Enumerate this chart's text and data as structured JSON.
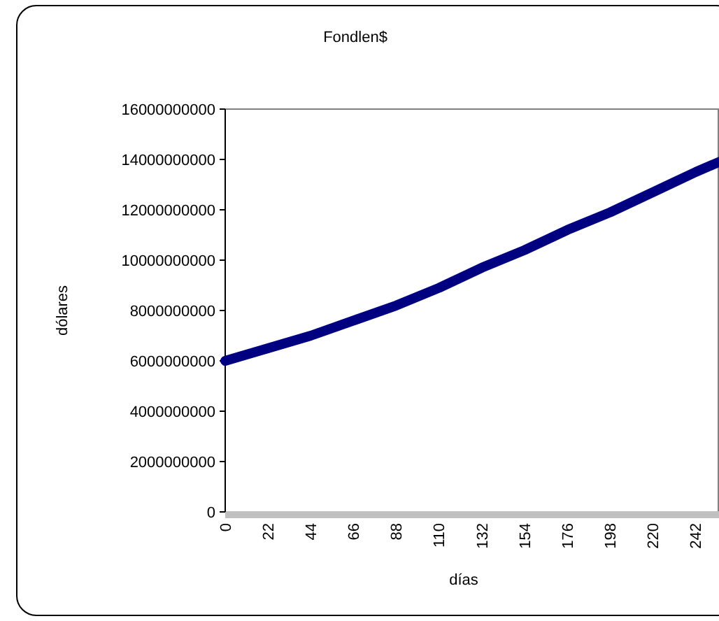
{
  "chart_data": {
    "type": "line",
    "title": "Fondlen$",
    "xlabel": "días",
    "ylabel": "dólares",
    "x": [
      0,
      22,
      44,
      66,
      88,
      110,
      132,
      154,
      176,
      198,
      220,
      242,
      254
    ],
    "series": [
      {
        "color": "#000080",
        "values": [
          6000000000,
          6500000000,
          7000000000,
          7600000000,
          8200000000,
          8900000000,
          9700000000,
          10400000000,
          11200000000,
          11900000000,
          12700000000,
          13500000000,
          13900000000
        ]
      }
    ],
    "xlim": [
      0,
      254
    ],
    "xticks": [
      0,
      22,
      44,
      66,
      88,
      110,
      132,
      154,
      176,
      198,
      220,
      242
    ],
    "ylim": [
      0,
      16000000000
    ],
    "yticks": [
      0,
      2000000000,
      4000000000,
      6000000000,
      8000000000,
      10000000000,
      12000000000,
      14000000000,
      16000000000
    ]
  }
}
